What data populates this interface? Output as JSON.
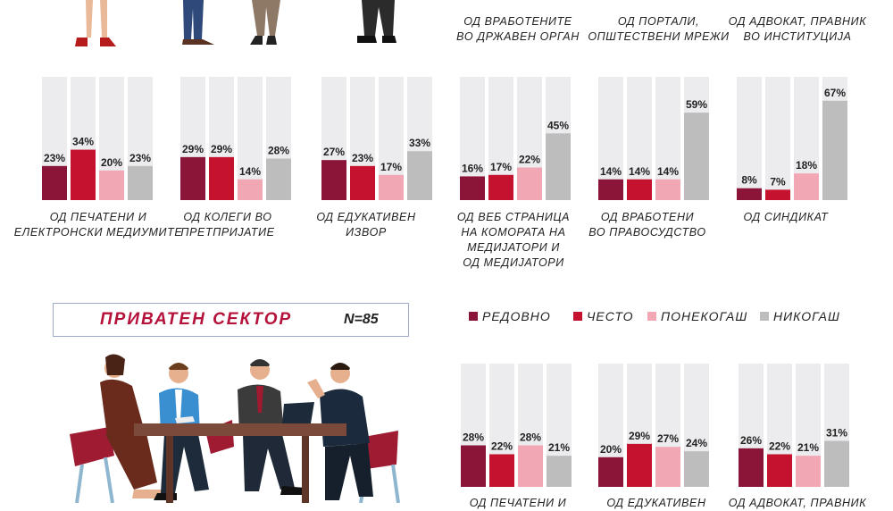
{
  "private_sector": {
    "title": "ПРИВАТЕН СЕКТОР",
    "n_label": "N=85"
  },
  "legend": [
    {
      "name": "РЕДОВНО",
      "color": "#8a1538"
    },
    {
      "name": "ЧЕСТО",
      "color": "#c4122f"
    },
    {
      "name": "ПОНЕКОГАШ",
      "color": "#f2a7b5"
    },
    {
      "name": "НИКОГАШ",
      "color": "#bdbdbd"
    }
  ],
  "top_labels": [
    "ОД ВРАБОТЕНИТЕ\nВО ДРЖАВЕН ОРГАН",
    "ОД ПОРТАЛИ,\nОПШТЕСТВЕНИ МРЕЖИ",
    "ОД АДВОКАТ, ПРАВНИК\nВО ИНСТИТУЦИЈА"
  ],
  "chart_data": [
    {
      "type": "bar",
      "category": "ОД ПЕЧАТЕНИ И\nЕЛЕКТРОНСКИ МЕДИУМИТЕ",
      "values": [
        23,
        34,
        20,
        23
      ],
      "labels": [
        "23%",
        "34%",
        "20%",
        "23%"
      ]
    },
    {
      "type": "bar",
      "category": "ОД КОЛЕГИ ВО\nПРЕТПРИЈАТИЕ",
      "values": [
        29,
        29,
        14,
        28
      ],
      "labels": [
        "29%",
        "29%",
        "14%",
        "28%"
      ]
    },
    {
      "type": "bar",
      "category": "ОД ЕДУКАТИВЕН\nИЗВОР",
      "values": [
        27,
        23,
        17,
        33
      ],
      "labels": [
        "27%",
        "23%",
        "17%",
        "33%"
      ]
    },
    {
      "type": "bar",
      "category": "ОД ВЕБ СТРАНИЦА\nНА КОМОРАТА НА\nМЕДИЈАТОРИ И\nОД МЕДИЈАТОРИ",
      "values": [
        16,
        17,
        22,
        45
      ],
      "labels": [
        "16%",
        "17%",
        "22%",
        "45%"
      ]
    },
    {
      "type": "bar",
      "category": "ОД ВРАБОТЕНИ\nВО ПРАВОСУДСТВО",
      "values": [
        14,
        14,
        14,
        59
      ],
      "labels": [
        "14%",
        "14%",
        "14%",
        "59%"
      ]
    },
    {
      "type": "bar",
      "category": "ОД СИНДИКАТ",
      "values": [
        8,
        7,
        18,
        67
      ],
      "labels": [
        "8%",
        "7%",
        "18%",
        "67%"
      ]
    },
    {
      "type": "bar",
      "category": "ОД ПЕЧАТЕНИ И",
      "values": [
        28,
        22,
        28,
        21
      ],
      "labels": [
        "28%",
        "22%",
        "28%",
        "21%"
      ]
    },
    {
      "type": "bar",
      "category": "ОД ЕДУКАТИВЕН",
      "values": [
        20,
        29,
        27,
        24
      ],
      "labels": [
        "20%",
        "29%",
        "27%",
        "24%"
      ]
    },
    {
      "type": "bar",
      "category": "ОД АДВОКАТ, ПРАВНИК",
      "values": [
        26,
        22,
        21,
        31
      ],
      "labels": [
        "26%",
        "22%",
        "21%",
        "31%"
      ]
    }
  ]
}
